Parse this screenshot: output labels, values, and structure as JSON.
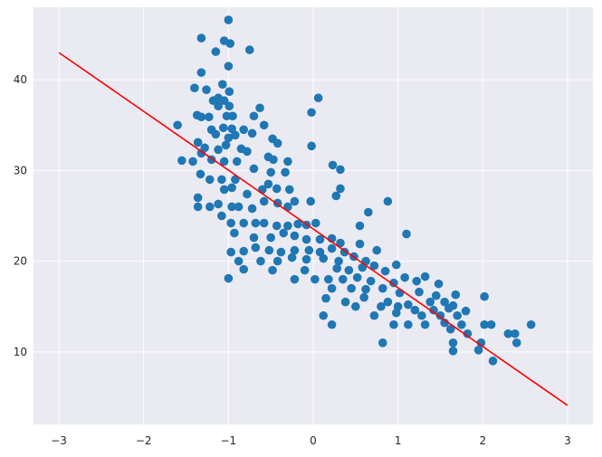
{
  "colors": {
    "plot_background": "#eaeaf2",
    "grid": "#ffffff",
    "points": "#1f77b4",
    "fit_line": "#ff0000",
    "tick_text": "#262626"
  },
  "chart_data": {
    "type": "scatter",
    "xlim": [
      -3.3,
      3.3
    ],
    "ylim": [
      2.0,
      48.0
    ],
    "grid": true,
    "xticks": [
      -3,
      -2,
      -1,
      0,
      1,
      2,
      3
    ],
    "xtick_labels": [
      "−3",
      "−2",
      "−1",
      "0",
      "1",
      "2",
      "3"
    ],
    "yticks": [
      10,
      20,
      30,
      40
    ],
    "ytick_labels": [
      "10",
      "20",
      "30",
      "40"
    ],
    "series": [
      {
        "kind": "points",
        "color": "#1f77b4",
        "points": [
          [
            -1.0,
            46.6
          ],
          [
            -1.32,
            44.6
          ],
          [
            -1.05,
            44.3
          ],
          [
            -0.98,
            44.0
          ],
          [
            -0.75,
            43.3
          ],
          [
            -1.15,
            43.1
          ],
          [
            -1.0,
            41.5
          ],
          [
            -1.32,
            40.8
          ],
          [
            -1.07,
            39.5
          ],
          [
            -1.4,
            39.1
          ],
          [
            -1.26,
            38.9
          ],
          [
            -0.99,
            38.7
          ],
          [
            -1.12,
            38.0
          ],
          [
            -1.05,
            37.7
          ],
          [
            -1.18,
            37.7
          ],
          [
            -1.12,
            37.1
          ],
          [
            -0.99,
            37.1
          ],
          [
            0.06,
            38.0
          ],
          [
            -0.63,
            36.9
          ],
          [
            -1.37,
            36.1
          ],
          [
            -1.32,
            35.9
          ],
          [
            -1.23,
            35.9
          ],
          [
            -1.02,
            36.0
          ],
          [
            -0.95,
            36.0
          ],
          [
            -0.7,
            36.0
          ],
          [
            -0.02,
            36.4
          ],
          [
            -1.6,
            35.0
          ],
          [
            -1.2,
            34.5
          ],
          [
            -1.06,
            34.7
          ],
          [
            -0.96,
            34.6
          ],
          [
            -0.82,
            34.5
          ],
          [
            -1.15,
            34.0
          ],
          [
            -1.0,
            33.6
          ],
          [
            -0.92,
            33.9
          ],
          [
            -0.72,
            34.1
          ],
          [
            -1.36,
            33.1
          ],
          [
            -1.28,
            32.5
          ],
          [
            -1.12,
            32.3
          ],
          [
            -1.03,
            32.8
          ],
          [
            -0.85,
            32.4
          ],
          [
            -0.78,
            32.1
          ],
          [
            -0.48,
            33.5
          ],
          [
            -0.42,
            33.0
          ],
          [
            -0.02,
            32.7
          ],
          [
            -0.58,
            35.0
          ],
          [
            -1.55,
            31.1
          ],
          [
            -1.42,
            31.0
          ],
          [
            -1.32,
            31.9
          ],
          [
            -1.2,
            31.2
          ],
          [
            -1.05,
            31.0
          ],
          [
            -0.9,
            31.0
          ],
          [
            -0.53,
            31.5
          ],
          [
            -0.47,
            31.2
          ],
          [
            -0.3,
            31.0
          ],
          [
            0.23,
            30.6
          ],
          [
            0.32,
            30.1
          ],
          [
            -1.33,
            29.6
          ],
          [
            -1.22,
            29.0
          ],
          [
            -1.08,
            29.0
          ],
          [
            -0.92,
            29.0
          ],
          [
            -0.7,
            30.2
          ],
          [
            -0.5,
            29.8
          ],
          [
            -0.33,
            29.8
          ],
          [
            -1.36,
            27.0
          ],
          [
            -1.05,
            27.9
          ],
          [
            -0.96,
            28.1
          ],
          [
            -0.78,
            27.4
          ],
          [
            -0.6,
            27.9
          ],
          [
            -0.53,
            28.5
          ],
          [
            -0.43,
            28.0
          ],
          [
            -0.28,
            27.9
          ],
          [
            0.32,
            28.0
          ],
          [
            0.27,
            27.2
          ],
          [
            0.88,
            26.6
          ],
          [
            -1.36,
            26.0
          ],
          [
            -1.22,
            26.0
          ],
          [
            -1.12,
            26.3
          ],
          [
            -0.96,
            26.0
          ],
          [
            -0.88,
            26.0
          ],
          [
            -0.72,
            25.8
          ],
          [
            -0.58,
            26.6
          ],
          [
            -0.42,
            26.4
          ],
          [
            -0.3,
            26.0
          ],
          [
            -0.22,
            26.6
          ],
          [
            -0.03,
            26.6
          ],
          [
            0.65,
            25.4
          ],
          [
            -1.08,
            25.0
          ],
          [
            -0.97,
            24.2
          ],
          [
            -0.82,
            24.2
          ],
          [
            -0.68,
            24.2
          ],
          [
            -0.58,
            24.2
          ],
          [
            -0.43,
            23.9
          ],
          [
            -0.3,
            23.9
          ],
          [
            -0.18,
            24.1
          ],
          [
            -0.08,
            24.0
          ],
          [
            0.03,
            24.2
          ],
          [
            -0.93,
            23.1
          ],
          [
            -0.7,
            22.6
          ],
          [
            -0.5,
            22.6
          ],
          [
            -0.35,
            23.1
          ],
          [
            -0.22,
            22.8
          ],
          [
            -0.08,
            22.4
          ],
          [
            0.08,
            22.4
          ],
          [
            0.22,
            22.5
          ],
          [
            0.32,
            22.0
          ],
          [
            0.55,
            23.9
          ],
          [
            1.1,
            23.0
          ],
          [
            -0.97,
            21.0
          ],
          [
            -0.82,
            21.1
          ],
          [
            -0.68,
            21.5
          ],
          [
            -0.52,
            21.2
          ],
          [
            -0.38,
            21.0
          ],
          [
            -0.22,
            21.2
          ],
          [
            -0.05,
            21.2
          ],
          [
            0.08,
            21.0
          ],
          [
            0.22,
            21.4
          ],
          [
            0.37,
            21.0
          ],
          [
            0.55,
            21.9
          ],
          [
            0.75,
            21.2
          ],
          [
            -0.88,
            20.0
          ],
          [
            -0.62,
            20.0
          ],
          [
            -0.42,
            20.0
          ],
          [
            -0.25,
            20.4
          ],
          [
            -0.08,
            20.2
          ],
          [
            0.12,
            20.3
          ],
          [
            0.3,
            20.0
          ],
          [
            0.48,
            20.5
          ],
          [
            0.62,
            20.0
          ],
          [
            0.72,
            19.5
          ],
          [
            0.98,
            19.6
          ],
          [
            -0.82,
            19.1
          ],
          [
            -0.48,
            19.0
          ],
          [
            -0.1,
            19.0
          ],
          [
            0.28,
            19.2
          ],
          [
            0.42,
            19.0
          ],
          [
            0.58,
            19.3
          ],
          [
            0.85,
            18.9
          ],
          [
            1.08,
            18.2
          ],
          [
            1.32,
            18.3
          ],
          [
            -1.0,
            18.1
          ],
          [
            -0.22,
            18.0
          ],
          [
            0.02,
            18.0
          ],
          [
            0.18,
            18.0
          ],
          [
            0.35,
            18.0
          ],
          [
            0.52,
            18.2
          ],
          [
            0.68,
            17.8
          ],
          [
            0.95,
            17.6
          ],
          [
            1.22,
            17.8
          ],
          [
            1.48,
            17.5
          ],
          [
            0.22,
            17.0
          ],
          [
            0.45,
            17.0
          ],
          [
            0.62,
            16.9
          ],
          [
            0.82,
            17.0
          ],
          [
            1.02,
            16.5
          ],
          [
            1.25,
            16.6
          ],
          [
            1.45,
            16.2
          ],
          [
            1.68,
            16.3
          ],
          [
            2.02,
            16.1
          ],
          [
            0.15,
            15.9
          ],
          [
            0.38,
            15.5
          ],
          [
            0.6,
            16.0
          ],
          [
            0.88,
            15.5
          ],
          [
            1.12,
            15.2
          ],
          [
            1.38,
            15.5
          ],
          [
            1.55,
            15.5
          ],
          [
            1.65,
            15.1
          ],
          [
            0.5,
            15.0
          ],
          [
            0.8,
            15.0
          ],
          [
            1.0,
            15.0
          ],
          [
            1.2,
            14.6
          ],
          [
            1.42,
            14.6
          ],
          [
            1.6,
            14.8
          ],
          [
            1.8,
            14.5
          ],
          [
            0.12,
            14.0
          ],
          [
            0.72,
            14.0
          ],
          [
            0.98,
            14.3
          ],
          [
            1.28,
            14.0
          ],
          [
            1.5,
            14.0
          ],
          [
            1.7,
            14.0
          ],
          [
            0.22,
            13.0
          ],
          [
            0.95,
            13.0
          ],
          [
            1.12,
            13.0
          ],
          [
            1.32,
            13.0
          ],
          [
            1.55,
            13.2
          ],
          [
            1.75,
            13.0
          ],
          [
            2.02,
            13.0
          ],
          [
            2.1,
            13.0
          ],
          [
            1.62,
            12.5
          ],
          [
            1.82,
            12.0
          ],
          [
            2.3,
            12.0
          ],
          [
            2.38,
            12.0
          ],
          [
            2.57,
            13.0
          ],
          [
            0.82,
            11.0
          ],
          [
            1.65,
            11.0
          ],
          [
            1.98,
            11.0
          ],
          [
            2.4,
            11.0
          ],
          [
            1.65,
            10.1
          ],
          [
            1.95,
            10.2
          ],
          [
            2.12,
            9.0
          ]
        ]
      },
      {
        "kind": "line",
        "color": "#ff0000",
        "points": [
          [
            -3.0,
            43.0
          ],
          [
            3.0,
            4.1
          ]
        ]
      }
    ]
  }
}
